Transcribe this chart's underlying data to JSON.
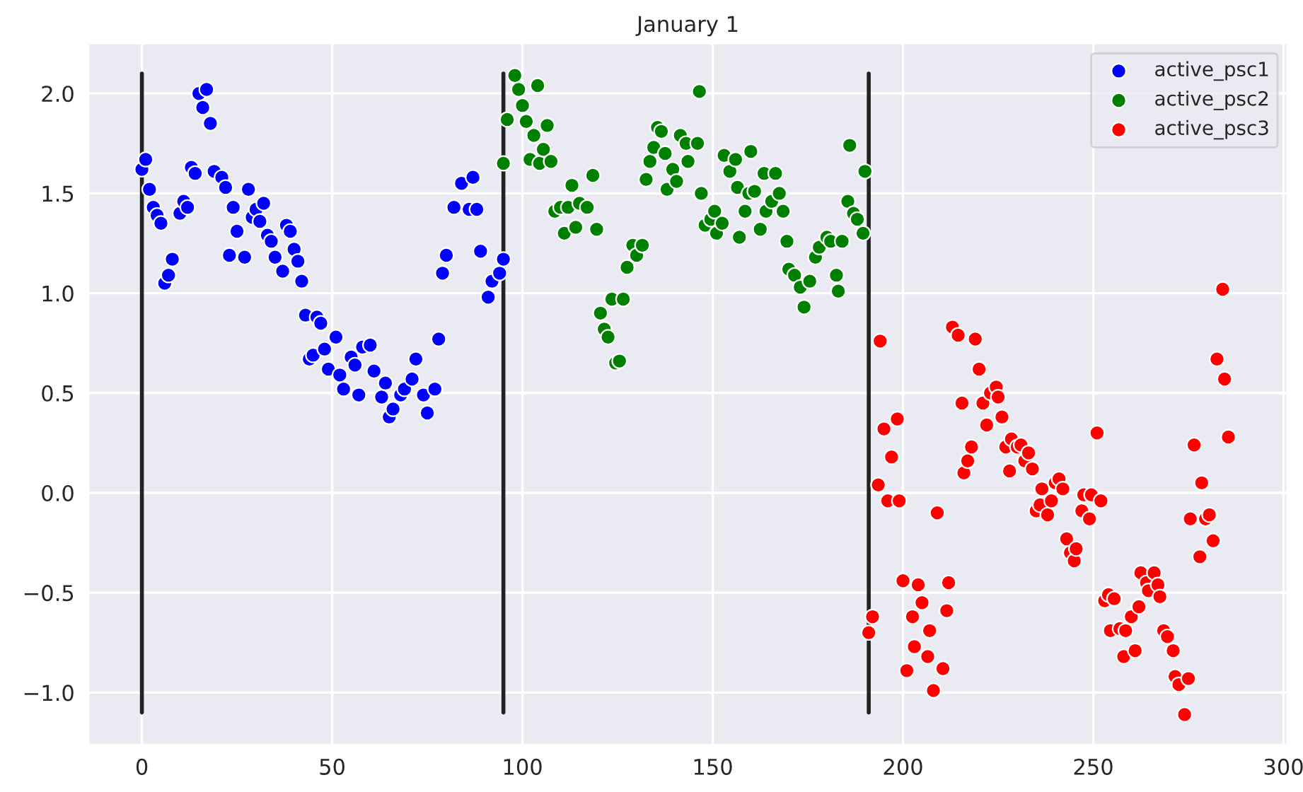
{
  "chart_data": {
    "type": "scatter",
    "title": "January 1",
    "marker": "circle",
    "grid": true,
    "legend": "top right",
    "xlim": [
      -14,
      301
    ],
    "ylim": [
      -1.26,
      2.25
    ],
    "xticks": [
      0,
      50,
      100,
      150,
      200,
      250,
      300
    ],
    "yticks": [
      {
        "value": -1.0,
        "label": "−1.0"
      },
      {
        "value": -0.5,
        "label": "−0.5"
      },
      {
        "value": 0.0,
        "label": "0.0"
      },
      {
        "value": 0.5,
        "label": "0.5"
      },
      {
        "value": 1.0,
        "label": "1.0"
      },
      {
        "value": 1.5,
        "label": "1.5"
      },
      {
        "value": 2.0,
        "label": "2.0"
      }
    ],
    "series": [
      {
        "name": "active_psc1",
        "color": "#0000ff",
        "x": [
          0,
          1,
          2,
          3,
          4,
          5,
          6,
          7,
          8,
          10,
          11,
          12,
          13,
          14,
          15,
          16,
          17,
          18,
          19,
          21,
          22,
          23,
          24,
          25,
          27,
          28,
          29,
          30,
          31,
          32,
          33,
          34,
          35,
          37,
          38,
          39,
          40,
          41,
          42,
          43,
          44,
          45,
          46,
          47,
          48,
          49,
          51,
          52,
          53,
          55,
          56,
          57,
          58,
          60,
          61,
          63,
          64,
          65,
          66,
          68,
          69,
          71,
          72,
          74,
          75,
          77,
          78,
          79,
          80,
          82,
          84,
          86,
          87,
          88,
          89,
          91,
          92,
          94,
          95
        ],
        "values": [
          1.62,
          1.67,
          1.52,
          1.43,
          1.39,
          1.35,
          1.05,
          1.09,
          1.17,
          1.4,
          1.46,
          1.43,
          1.63,
          1.6,
          2.0,
          1.93,
          2.02,
          1.85,
          1.61,
          1.58,
          1.53,
          1.19,
          1.43,
          1.31,
          1.18,
          1.52,
          1.38,
          1.42,
          1.36,
          1.45,
          1.29,
          1.26,
          1.18,
          1.11,
          1.34,
          1.31,
          1.22,
          1.16,
          1.06,
          0.89,
          0.67,
          0.69,
          0.88,
          0.85,
          0.72,
          0.62,
          0.78,
          0.59,
          0.52,
          0.68,
          0.64,
          0.49,
          0.73,
          0.74,
          0.61,
          0.48,
          0.55,
          0.38,
          0.42,
          0.49,
          0.52,
          0.57,
          0.67,
          0.49,
          0.4,
          0.52,
          0.77,
          1.1,
          1.19,
          1.43,
          1.55,
          1.42,
          1.58,
          1.42,
          1.21,
          0.98,
          1.06,
          1.1,
          1.17
        ]
      },
      {
        "name": "active_psc2",
        "color": "#008000",
        "x": [
          95,
          96,
          98,
          99,
          100,
          101,
          102,
          103,
          104,
          104.5,
          105.5,
          106.5,
          107.5,
          108.5,
          110,
          111,
          112,
          113,
          114,
          115,
          117,
          118.5,
          119.5,
          120.5,
          121.5,
          122.5,
          123.5,
          124.5,
          125.5,
          126.5,
          127.5,
          129,
          130,
          131.5,
          132.5,
          133.5,
          134.5,
          135.5,
          136.5,
          137.5,
          138,
          139.5,
          140.5,
          141.5,
          143,
          143.5,
          146,
          146.5,
          147,
          148,
          149.5,
          150.5,
          151,
          152.5,
          153,
          154.5,
          156,
          156.5,
          157,
          158.5,
          159.5,
          160,
          161,
          162.5,
          163.5,
          164,
          165.5,
          166.5,
          167.5,
          168.5,
          169.5,
          170,
          171.5,
          173,
          174,
          175.5,
          177,
          178,
          180,
          181,
          182.5,
          183,
          184,
          185.5,
          186,
          187,
          188,
          189.5,
          190
        ],
        "values": [
          1.65,
          1.87,
          2.09,
          2.02,
          1.94,
          1.86,
          1.67,
          1.79,
          2.04,
          1.65,
          1.72,
          1.84,
          1.66,
          1.41,
          1.43,
          1.3,
          1.43,
          1.54,
          1.33,
          1.45,
          1.43,
          1.59,
          1.32,
          0.9,
          0.82,
          0.78,
          0.97,
          0.65,
          0.66,
          0.97,
          1.13,
          1.24,
          1.19,
          1.24,
          1.57,
          1.66,
          1.73,
          1.83,
          1.81,
          1.7,
          1.52,
          1.62,
          1.56,
          1.79,
          1.75,
          1.66,
          1.75,
          2.01,
          1.5,
          1.34,
          1.37,
          1.41,
          1.3,
          1.35,
          1.69,
          1.61,
          1.67,
          1.53,
          1.28,
          1.41,
          1.5,
          1.71,
          1.51,
          1.32,
          1.6,
          1.41,
          1.46,
          1.6,
          1.5,
          1.41,
          1.26,
          1.12,
          1.09,
          1.03,
          0.93,
          1.06,
          1.18,
          1.23,
          1.28,
          1.26,
          1.09,
          1.01,
          1.26,
          1.46,
          1.74,
          1.4,
          1.37,
          1.3,
          1.61
        ]
      },
      {
        "name": "active_psc3",
        "color": "#ff0000",
        "x": [
          191,
          192,
          193.5,
          194,
          195,
          196,
          197,
          198.5,
          199,
          200,
          201,
          202.5,
          203,
          204,
          205,
          206.5,
          207,
          208,
          209,
          210.5,
          211.5,
          212,
          213,
          214.5,
          215.5,
          216,
          217,
          218,
          219,
          220,
          221,
          222,
          223,
          224.5,
          225,
          226,
          227,
          228,
          228.5,
          230,
          231,
          232,
          233,
          234,
          235,
          236,
          236.5,
          238,
          239,
          240,
          241,
          242,
          243,
          244,
          245,
          245.5,
          247,
          247.5,
          249,
          249.5,
          251,
          252,
          253,
          254,
          254.5,
          255.5,
          257,
          258,
          258.5,
          260,
          261,
          262,
          262.5,
          264,
          264.5,
          266,
          267,
          267.5,
          268.5,
          269.5,
          271,
          271.5,
          272.5,
          274,
          275,
          275.5,
          276.5,
          278,
          278.5,
          279.5,
          280.5,
          281.5,
          282.5,
          284,
          284.5,
          285.5
        ],
        "values": [
          -0.7,
          -0.62,
          0.04,
          0.76,
          0.32,
          -0.04,
          0.18,
          0.37,
          -0.04,
          -0.44,
          -0.89,
          -0.62,
          -0.77,
          -0.46,
          -0.55,
          -0.82,
          -0.69,
          -0.99,
          -0.1,
          -0.88,
          -0.59,
          -0.45,
          0.83,
          0.79,
          0.45,
          0.1,
          0.16,
          0.23,
          0.77,
          0.62,
          0.45,
          0.34,
          0.5,
          0.53,
          0.48,
          0.38,
          0.23,
          0.11,
          0.27,
          0.23,
          0.24,
          0.16,
          0.2,
          0.12,
          -0.09,
          -0.06,
          0.02,
          -0.11,
          -0.04,
          0.05,
          0.07,
          0.02,
          -0.23,
          -0.3,
          -0.34,
          -0.28,
          -0.09,
          -0.01,
          -0.13,
          -0.01,
          0.3,
          -0.04,
          -0.54,
          -0.51,
          -0.69,
          -0.53,
          -0.68,
          -0.82,
          -0.69,
          -0.62,
          -0.79,
          -0.57,
          -0.4,
          -0.45,
          -0.49,
          -0.4,
          -0.46,
          -0.52,
          -0.69,
          -0.72,
          -0.79,
          -0.92,
          -0.96,
          -1.11,
          -0.93,
          -0.13,
          0.24,
          -0.32,
          0.05,
          -0.13,
          -0.11,
          -0.24,
          0.67,
          1.02,
          0.57,
          0.28
        ]
      },
      {
        "type": "line",
        "line_style": "solid",
        "marker": "none",
        "color": "#222222",
        "x": [
          0,
          0
        ],
        "values": [
          -1.1,
          2.1
        ]
      },
      {
        "type": "line",
        "line_style": "solid",
        "marker": "none",
        "color": "#222222",
        "x": [
          95,
          95
        ],
        "values": [
          -1.1,
          2.1
        ]
      },
      {
        "type": "line",
        "line_style": "solid",
        "marker": "none",
        "color": "#222222",
        "x": [
          191,
          191
        ],
        "values": [
          -1.1,
          2.1
        ]
      }
    ]
  }
}
